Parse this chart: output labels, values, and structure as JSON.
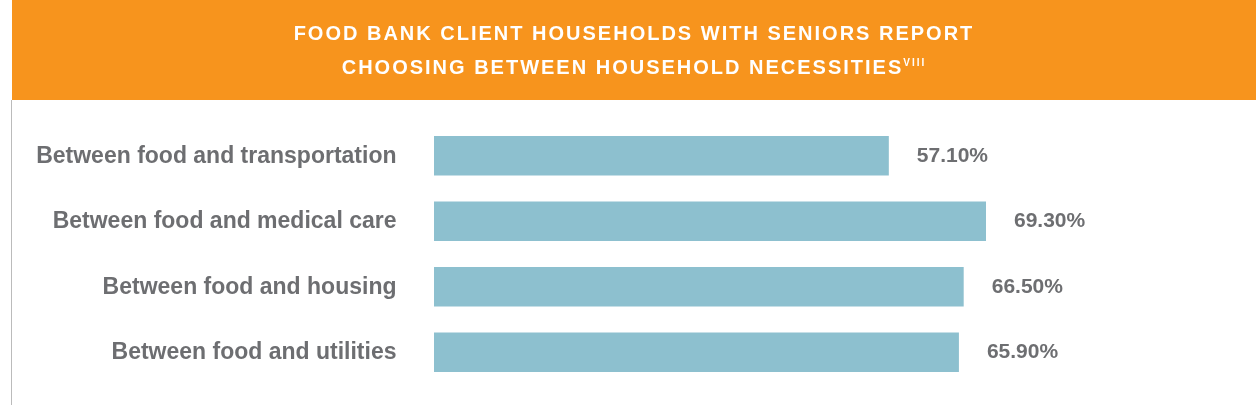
{
  "chart_data": {
    "type": "bar",
    "orientation": "horizontal",
    "title": "FOOD BANK CLIENT HOUSEHOLDS WITH SENIORS REPORT CHOOSING BETWEEN HOUSEHOLD NECESSITIES$^{VIII}$",
    "categories": [
      "Between food and transportation",
      "Between food and medical care",
      "Between food and housing",
      "Between food and utilities"
    ],
    "values": [
      57.1,
      69.3,
      66.5,
      65.9
    ],
    "value_labels": [
      "57.10%",
      "69.30%",
      "66.50%",
      "65.90%"
    ],
    "color": "#8dc0cf"
  }
}
